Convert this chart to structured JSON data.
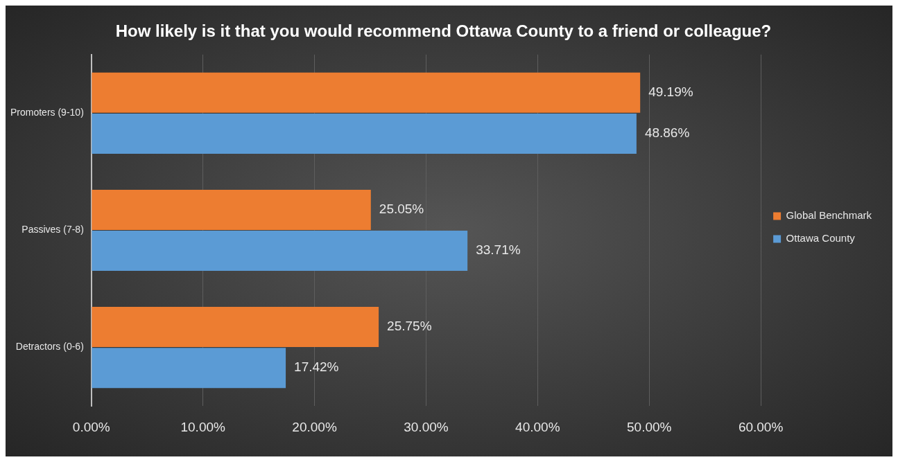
{
  "chart_data": {
    "type": "bar",
    "orientation": "horizontal",
    "title": "How likely is it that you would recommend Ottawa County to a friend or colleague?",
    "categories": [
      "Promoters (9-10)",
      "Passives (7-8)",
      "Detractors (0-6)"
    ],
    "series": [
      {
        "name": "Global Benchmark",
        "color": "#ed7d31",
        "values": [
          49.19,
          25.05,
          25.75
        ],
        "value_labels": [
          "49.19%",
          "25.05%",
          "25.75%"
        ]
      },
      {
        "name": "Ottawa County",
        "color": "#5b9bd5",
        "values": [
          48.86,
          33.71,
          17.42
        ],
        "value_labels": [
          "48.86%",
          "33.71%",
          "17.42%"
        ]
      }
    ],
    "xlim": [
      0,
      60
    ],
    "xticks": [
      {
        "value": 0,
        "label": "0.00%"
      },
      {
        "value": 10,
        "label": "10.00%"
      },
      {
        "value": 20,
        "label": "20.00%"
      },
      {
        "value": 30,
        "label": "30.00%"
      },
      {
        "value": 40,
        "label": "40.00%"
      },
      {
        "value": 50,
        "label": "50.00%"
      },
      {
        "value": 60,
        "label": "60.00%"
      }
    ],
    "grid": "x",
    "legend": "right"
  }
}
